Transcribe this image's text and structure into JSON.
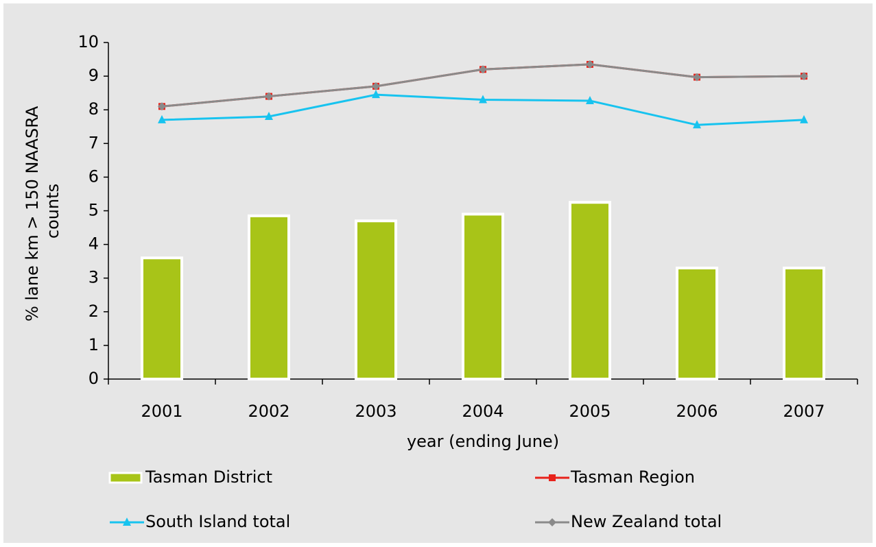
{
  "chart_data": {
    "type": "bar",
    "x_label": "year (ending June)",
    "y_label": [
      "% lane km > 150 NAASRA",
      "counts"
    ],
    "categories": [
      "2001",
      "2002",
      "2003",
      "2004",
      "2005",
      "2006",
      "2007"
    ],
    "ylim": [
      0,
      10
    ],
    "yticks": [
      0,
      1,
      2,
      3,
      4,
      5,
      6,
      7,
      8,
      9,
      10
    ],
    "background": "#e6e6e6",
    "series": [
      {
        "name": "Tasman District",
        "type": "bar",
        "color": "#a8c418",
        "values": [
          3.6,
          4.85,
          4.7,
          4.9,
          5.25,
          3.3,
          3.3
        ]
      },
      {
        "name": "Tasman Region",
        "type": "line",
        "marker": "square",
        "color": "#e8221b",
        "values": [
          8.1,
          8.4,
          8.7,
          9.2,
          9.35,
          8.97,
          9.0
        ]
      },
      {
        "name": "South Island total",
        "type": "line",
        "marker": "triangle",
        "color": "#17c3ef",
        "values": [
          7.7,
          7.8,
          8.45,
          8.3,
          8.27,
          7.55,
          7.7
        ]
      },
      {
        "name": "New Zealand total",
        "type": "line",
        "marker": "diamond",
        "color": "#8a8a8a",
        "values": [
          8.1,
          8.4,
          8.7,
          9.2,
          9.35,
          8.97,
          9.0
        ]
      }
    ]
  }
}
